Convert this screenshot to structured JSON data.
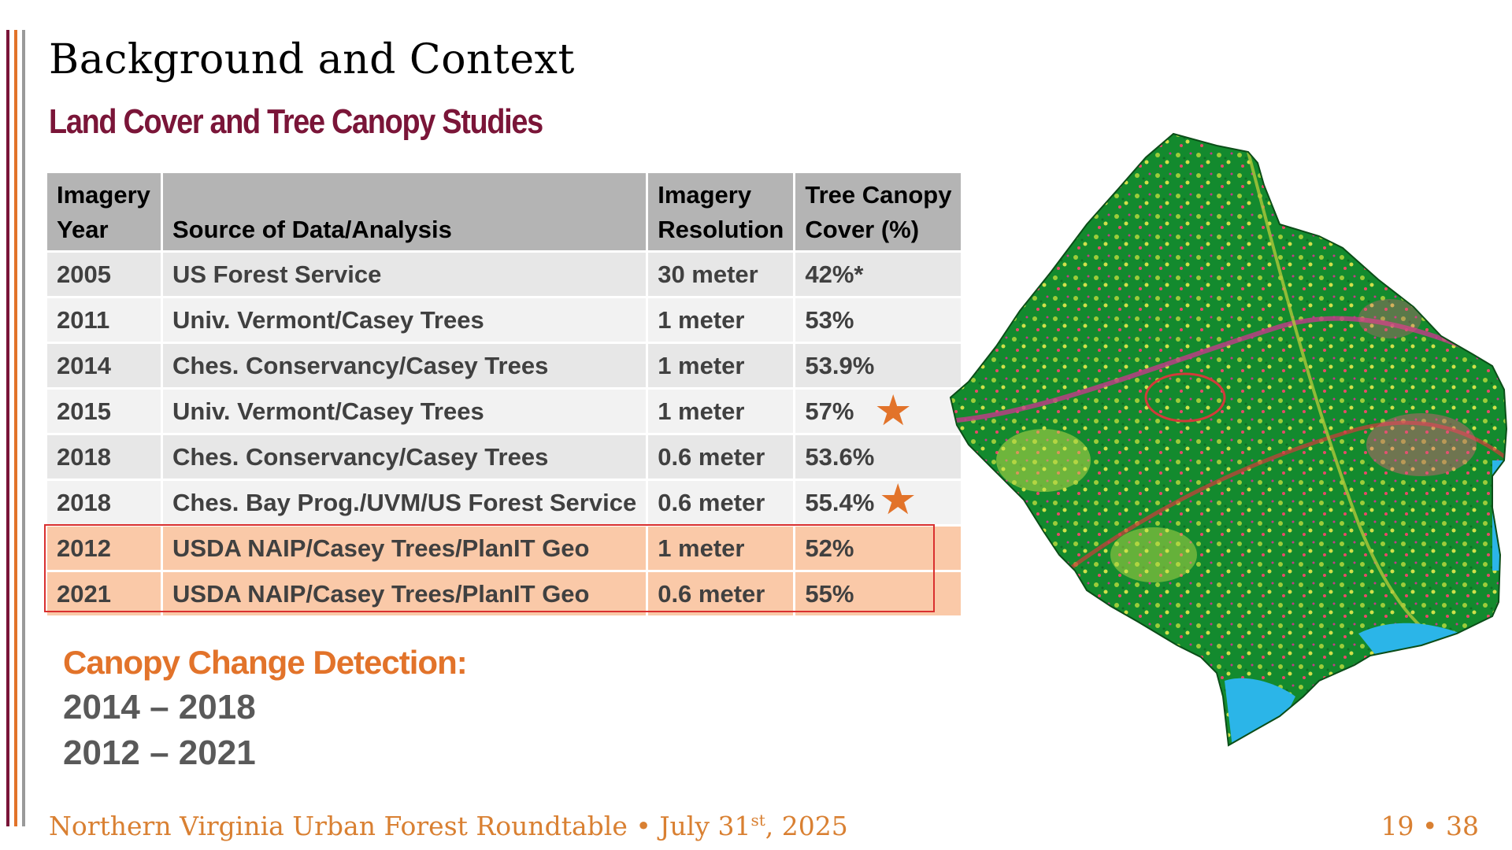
{
  "slide": {
    "title": "Background and Context",
    "subtitle": "Land Cover and Tree Canopy Studies"
  },
  "table": {
    "headers": {
      "year_line1": "Imagery",
      "year_line2": "Year",
      "source": "Source of Data/Analysis",
      "res_line1": "Imagery",
      "res_line2": "Resolution",
      "cover_line1": "Tree Canopy",
      "cover_line2": "Cover (%)"
    },
    "rows": [
      {
        "year": "2005",
        "source": "US Forest Service",
        "resolution": "30 meter",
        "cover": "42%*"
      },
      {
        "year": "2011",
        "source": "Univ. Vermont/Casey Trees",
        "resolution": "1 meter",
        "cover": "53%"
      },
      {
        "year": "2014",
        "source": "Ches. Conservancy/Casey Trees",
        "resolution": "1 meter",
        "cover": "53.9%"
      },
      {
        "year": "2015",
        "source": "Univ. Vermont/Casey Trees",
        "resolution": "1 meter",
        "cover": "57%"
      },
      {
        "year": "2018",
        "source": "Ches. Conservancy/Casey Trees",
        "resolution": "0.6 meter",
        "cover": "53.6%"
      },
      {
        "year": "2018",
        "source": "Ches. Bay Prog./UVM/US Forest Service",
        "resolution": "0.6 meter",
        "cover": "55.4%"
      },
      {
        "year": "2012",
        "source": "USDA NAIP/Casey Trees/PlanIT Geo",
        "resolution": "1 meter",
        "cover": "52%"
      },
      {
        "year": "2021",
        "source": "USDA NAIP/Casey Trees/PlanIT Geo",
        "resolution": "0.6 meter",
        "cover": "55%"
      }
    ],
    "star_glyph": "★",
    "star_rows": [
      3,
      5
    ],
    "highlight_rows": [
      6,
      7
    ]
  },
  "change_detection": {
    "heading": "Canopy Change Detection:",
    "ranges": [
      "2014 – 2018",
      "2012 – 2021"
    ]
  },
  "footer": {
    "event": "Northern Virginia Urban Forest Roundtable • July 31",
    "ordinal": "st",
    "year": ", 2025",
    "page": "19 • 38"
  },
  "colors": {
    "bar_maroon": "#7a1538",
    "bar_orange": "#e2732a",
    "bar_gray": "#9a9a9a",
    "accent_orange": "#e2732a",
    "map_green": "#138a2e",
    "map_water": "#2bb5e8"
  }
}
